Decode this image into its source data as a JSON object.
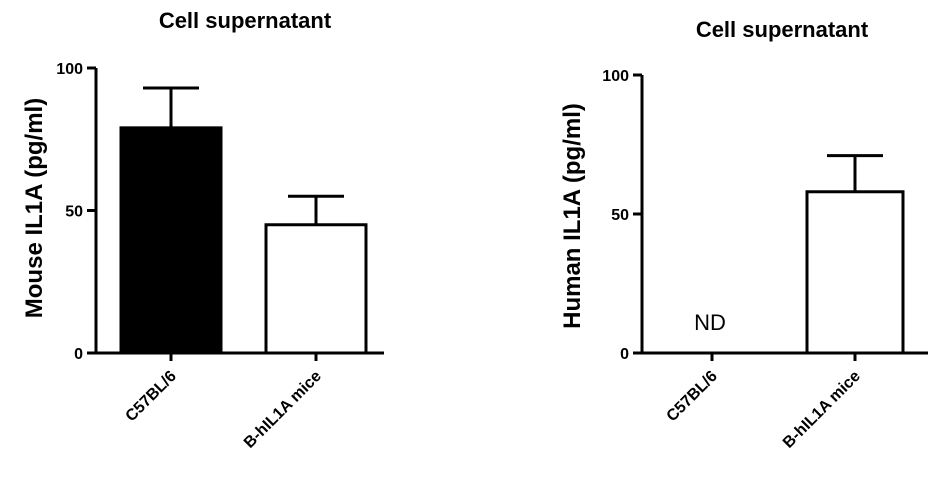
{
  "chart_data": [
    {
      "type": "bar",
      "title": "Cell supernatant",
      "xlabel": "",
      "ylabel": "Mouse IL1A (pg/ml)",
      "ylim": [
        0,
        100
      ],
      "yticks": [
        0,
        50,
        100
      ],
      "categories": [
        "C57BL/6",
        "B-hIL1A mice"
      ],
      "values": [
        79,
        45
      ],
      "errors": [
        14,
        10
      ],
      "bar_fills": [
        "#000000",
        "#ffffff"
      ],
      "annotations": []
    },
    {
      "type": "bar",
      "title": "Cell supernatant",
      "xlabel": "",
      "ylabel": "Human IL1A (pg/ml)",
      "ylim": [
        0,
        100
      ],
      "yticks": [
        0,
        50,
        100
      ],
      "categories": [
        "C57BL/6",
        "B-hIL1A mice"
      ],
      "values": [
        null,
        58
      ],
      "errors": [
        null,
        13
      ],
      "bar_fills": [
        "#ffffff",
        "#ffffff"
      ],
      "annotations": [
        {
          "category": "C57BL/6",
          "text": "ND"
        }
      ]
    }
  ]
}
